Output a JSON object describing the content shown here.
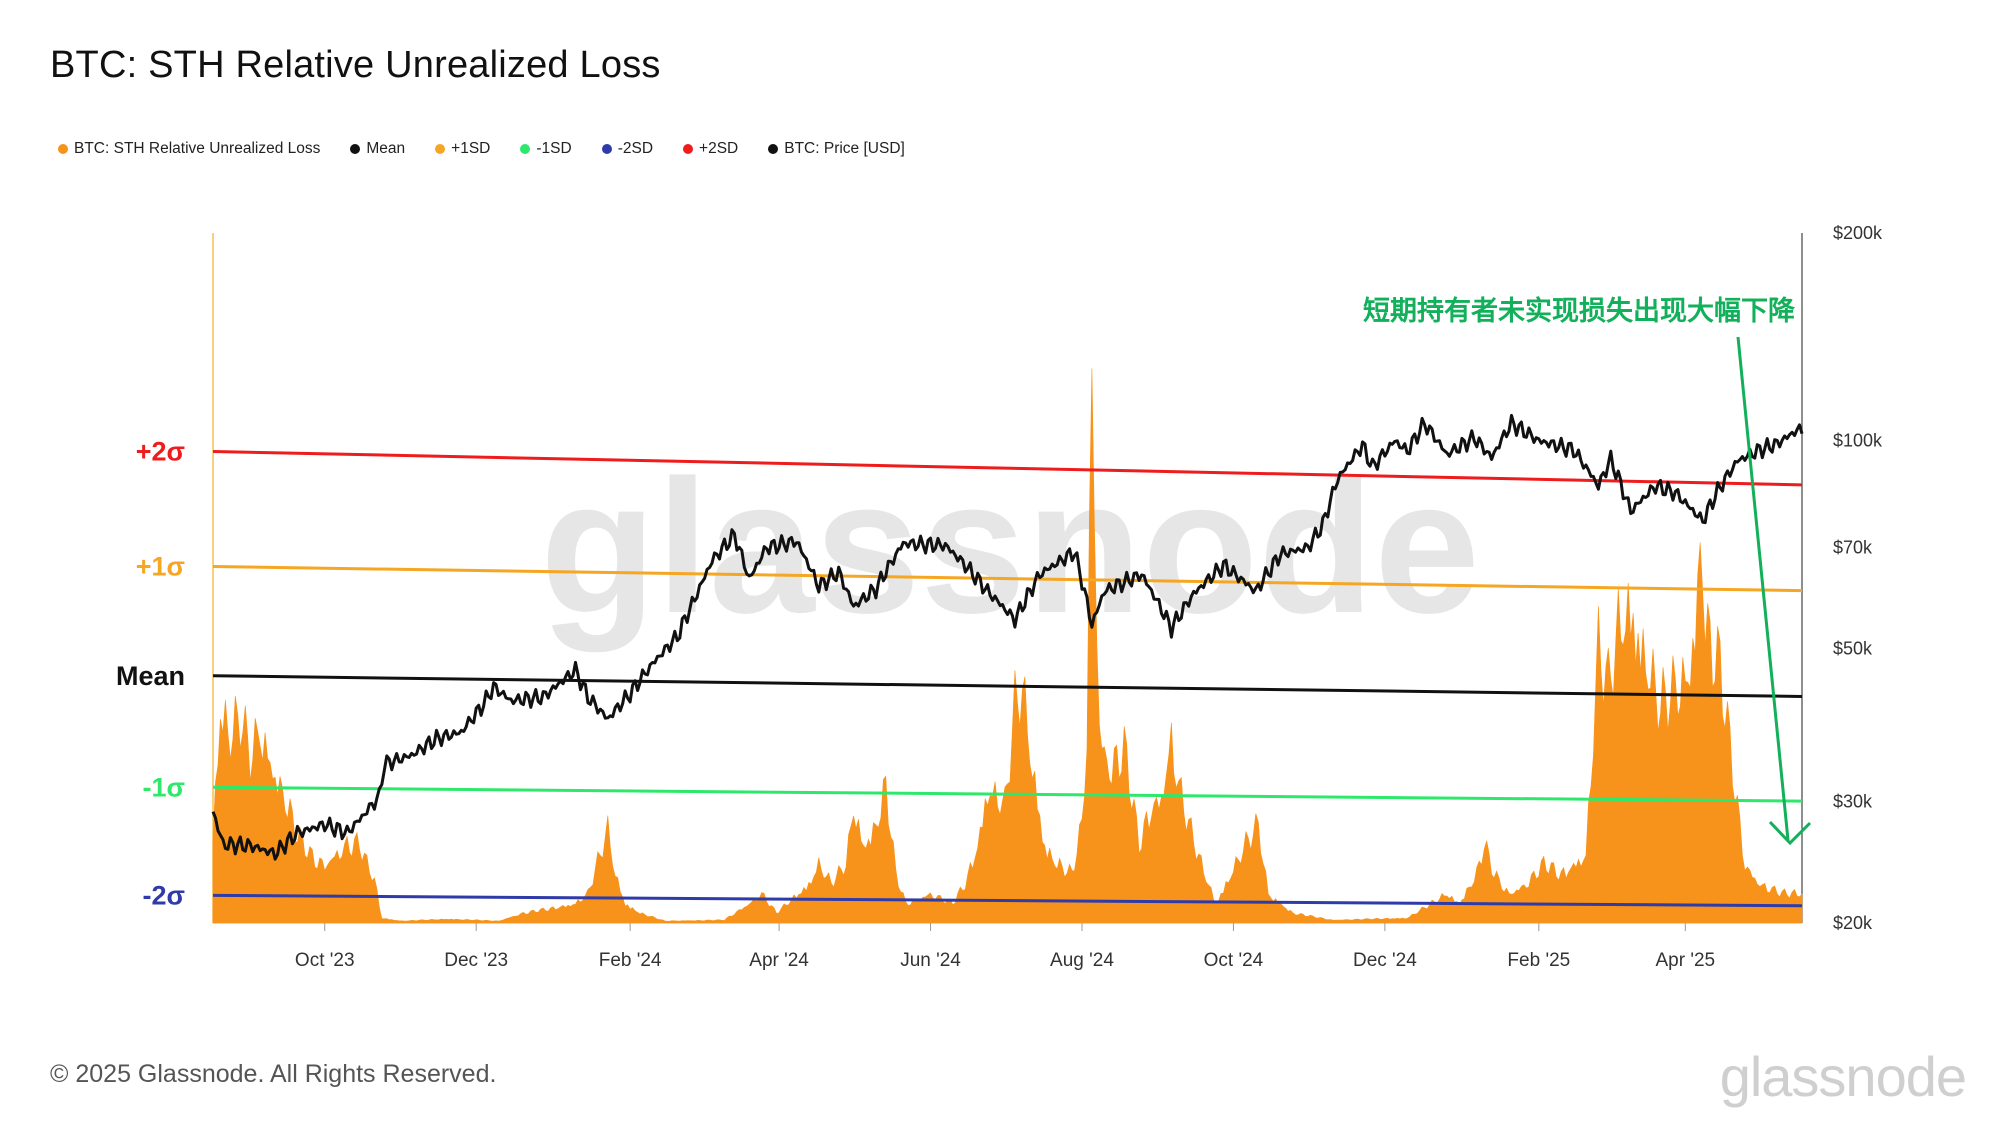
{
  "title": "BTC: STH Relative Unrealized Loss",
  "legend": [
    {
      "label": "BTC: STH Relative Unrealized Loss",
      "color": "#f7931a"
    },
    {
      "label": "Mean",
      "color": "#111111"
    },
    {
      "label": "+1SD",
      "color": "#f5a623"
    },
    {
      "label": "-1SD",
      "color": "#2ee86b"
    },
    {
      "label": "-2SD",
      "color": "#2f3ba8"
    },
    {
      "label": "+2SD",
      "color": "#ee1c1c"
    },
    {
      "label": "BTC: Price [USD]",
      "color": "#111111"
    }
  ],
  "band_labels": [
    {
      "text": "+2σ",
      "color": "#ee1c1c"
    },
    {
      "text": "+1σ",
      "color": "#f5a623"
    },
    {
      "text": "Mean",
      "color": "#111111"
    },
    {
      "text": "-1σ",
      "color": "#2ee86b"
    },
    {
      "text": "-2σ",
      "color": "#2f3ba8"
    }
  ],
  "annotation": {
    "text": "短期持有者未实现损失出现大幅下降",
    "color": "#12b05a"
  },
  "watermark": "glassnode",
  "footer": "© 2025 Glassnode. All Rights Reserved.",
  "logo": "glassnode",
  "chart_data": {
    "type": "area",
    "x_start": "2023-08-17",
    "x_end": "2025-05-18",
    "xticks": [
      "Oct '23",
      "Dec '23",
      "Feb '24",
      "Apr '24",
      "Jun '24",
      "Aug '24",
      "Oct '24",
      "Dec '24",
      "Feb '25",
      "Apr '25"
    ],
    "xtick_dates": [
      "2023-10-01",
      "2023-12-01",
      "2024-02-01",
      "2024-04-01",
      "2024-06-01",
      "2024-08-01",
      "2024-10-01",
      "2024-12-01",
      "2025-02-01",
      "2025-04-01"
    ],
    "y_right": {
      "scale": "log",
      "min": 20000,
      "max": 200000,
      "ticks": [
        20000,
        30000,
        50000,
        70000,
        100000,
        200000
      ],
      "tick_labels": [
        "$20k",
        "$30k",
        "$50k",
        "$70k",
        "$100k",
        "$200k"
      ]
    },
    "y_left": {
      "scale": "linear",
      "min": 0,
      "max": 0.6,
      "tick_labels": []
    },
    "series": [
      {
        "name": "BTC: STH Relative Unrealized Loss",
        "axis": "left",
        "color": "#f7931a",
        "points": [
          [
            "2023-08-17",
            0.1
          ],
          [
            "2023-08-20",
            0.22
          ],
          [
            "2023-08-24",
            0.19
          ],
          [
            "2023-08-28",
            0.21
          ],
          [
            "2023-09-01",
            0.17
          ],
          [
            "2023-09-05",
            0.2
          ],
          [
            "2023-09-10",
            0.16
          ],
          [
            "2023-09-15",
            0.13
          ],
          [
            "2023-09-20",
            0.09
          ],
          [
            "2023-09-25",
            0.07
          ],
          [
            "2023-10-01",
            0.06
          ],
          [
            "2023-10-05",
            0.07
          ],
          [
            "2023-10-10",
            0.08
          ],
          [
            "2023-10-15",
            0.08
          ],
          [
            "2023-10-18",
            0.06
          ],
          [
            "2023-10-21",
            0.045
          ],
          [
            "2023-10-24",
            0.005
          ],
          [
            "2023-11-01",
            0.002
          ],
          [
            "2023-11-20",
            0.004
          ],
          [
            "2023-12-10",
            0.002
          ],
          [
            "2023-12-20",
            0.01
          ],
          [
            "2024-01-01",
            0.015
          ],
          [
            "2024-01-10",
            0.02
          ],
          [
            "2024-01-15",
            0.03
          ],
          [
            "2024-01-20",
            0.07
          ],
          [
            "2024-01-23",
            0.095
          ],
          [
            "2024-01-26",
            0.05
          ],
          [
            "2024-01-30",
            0.02
          ],
          [
            "2024-02-05",
            0.01
          ],
          [
            "2024-02-15",
            0.002
          ],
          [
            "2024-03-10",
            0.003
          ],
          [
            "2024-03-20",
            0.02
          ],
          [
            "2024-03-25",
            0.03
          ],
          [
            "2024-03-31",
            0.01
          ],
          [
            "2024-04-13",
            0.04
          ],
          [
            "2024-04-17",
            0.06
          ],
          [
            "2024-04-22",
            0.04
          ],
          [
            "2024-04-28",
            0.06
          ],
          [
            "2024-05-01",
            0.12
          ],
          [
            "2024-05-05",
            0.08
          ],
          [
            "2024-05-10",
            0.1
          ],
          [
            "2024-05-14",
            0.14
          ],
          [
            "2024-05-18",
            0.05
          ],
          [
            "2024-05-22",
            0.02
          ],
          [
            "2024-06-01",
            0.03
          ],
          [
            "2024-06-10",
            0.02
          ],
          [
            "2024-06-15",
            0.04
          ],
          [
            "2024-06-20",
            0.08
          ],
          [
            "2024-06-24",
            0.14
          ],
          [
            "2024-07-01",
            0.12
          ],
          [
            "2024-07-05",
            0.22
          ],
          [
            "2024-07-08",
            0.24
          ],
          [
            "2024-07-12",
            0.16
          ],
          [
            "2024-07-17",
            0.08
          ],
          [
            "2024-07-22",
            0.06
          ],
          [
            "2024-07-28",
            0.05
          ],
          [
            "2024-08-01",
            0.1
          ],
          [
            "2024-08-03",
            0.2
          ],
          [
            "2024-08-05",
            0.56
          ],
          [
            "2024-08-08",
            0.2
          ],
          [
            "2024-08-12",
            0.16
          ],
          [
            "2024-08-18",
            0.18
          ],
          [
            "2024-08-24",
            0.08
          ],
          [
            "2024-08-29",
            0.12
          ],
          [
            "2024-09-02",
            0.13
          ],
          [
            "2024-09-06",
            0.19
          ],
          [
            "2024-09-09",
            0.14
          ],
          [
            "2024-09-13",
            0.1
          ],
          [
            "2024-09-18",
            0.06
          ],
          [
            "2024-09-24",
            0.02
          ],
          [
            "2024-10-02",
            0.06
          ],
          [
            "2024-10-06",
            0.08
          ],
          [
            "2024-10-11",
            0.1
          ],
          [
            "2024-10-15",
            0.03
          ],
          [
            "2024-10-25",
            0.01
          ],
          [
            "2024-11-10",
            0.003
          ],
          [
            "2024-12-10",
            0.005
          ],
          [
            "2024-12-20",
            0.02
          ],
          [
            "2024-12-26",
            0.03
          ],
          [
            "2024-12-31",
            0.02
          ],
          [
            "2025-01-07",
            0.05
          ],
          [
            "2025-01-10",
            0.08
          ],
          [
            "2025-01-14",
            0.05
          ],
          [
            "2025-01-20",
            0.03
          ],
          [
            "2025-01-27",
            0.04
          ],
          [
            "2025-02-03",
            0.06
          ],
          [
            "2025-02-10",
            0.05
          ],
          [
            "2025-02-20",
            0.07
          ],
          [
            "2025-02-25",
            0.28
          ],
          [
            "2025-03-01",
            0.24
          ],
          [
            "2025-03-05",
            0.3
          ],
          [
            "2025-03-10",
            0.33
          ],
          [
            "2025-03-15",
            0.28
          ],
          [
            "2025-03-22",
            0.22
          ],
          [
            "2025-03-28",
            0.24
          ],
          [
            "2025-04-01",
            0.25
          ],
          [
            "2025-04-05",
            0.3
          ],
          [
            "2025-04-07",
            0.4
          ],
          [
            "2025-04-10",
            0.3
          ],
          [
            "2025-04-15",
            0.26
          ],
          [
            "2025-04-20",
            0.16
          ],
          [
            "2025-04-25",
            0.06
          ],
          [
            "2025-05-01",
            0.04
          ],
          [
            "2025-05-10",
            0.03
          ],
          [
            "2025-05-18",
            0.03
          ]
        ]
      },
      {
        "name": "Mean",
        "axis": "left",
        "color": "#111111",
        "points": [
          [
            "2023-08-17",
            0.215
          ],
          [
            "2025-05-18",
            0.197
          ]
        ]
      },
      {
        "name": "+1SD",
        "axis": "left",
        "color": "#f5a623",
        "points": [
          [
            "2023-08-17",
            0.31
          ],
          [
            "2025-05-18",
            0.289
          ]
        ]
      },
      {
        "name": "+2SD",
        "axis": "left",
        "color": "#ee1c1c",
        "points": [
          [
            "2023-08-17",
            0.41
          ],
          [
            "2025-05-18",
            0.381
          ]
        ]
      },
      {
        "name": "-1SD",
        "axis": "left",
        "color": "#2ee86b",
        "points": [
          [
            "2023-08-17",
            0.118
          ],
          [
            "2025-05-18",
            0.106
          ]
        ]
      },
      {
        "name": "-2SD",
        "axis": "left",
        "color": "#2f3ba8",
        "points": [
          [
            "2023-08-17",
            0.024
          ],
          [
            "2025-05-18",
            0.015
          ]
        ]
      },
      {
        "name": "BTC: Price [USD]",
        "axis": "right",
        "color": "#111111",
        "points": [
          [
            "2023-08-17",
            29000
          ],
          [
            "2023-08-21",
            26000
          ],
          [
            "2023-09-01",
            25900
          ],
          [
            "2023-09-11",
            25200
          ],
          [
            "2023-09-20",
            27000
          ],
          [
            "2023-10-01",
            27800
          ],
          [
            "2023-10-10",
            27000
          ],
          [
            "2023-10-16",
            28500
          ],
          [
            "2023-10-23",
            30500
          ],
          [
            "2023-10-25",
            34000
          ],
          [
            "2023-11-05",
            35000
          ],
          [
            "2023-11-15",
            37000
          ],
          [
            "2023-11-25",
            37800
          ],
          [
            "2023-12-04",
            41500
          ],
          [
            "2023-12-08",
            44000
          ],
          [
            "2023-12-15",
            42000
          ],
          [
            "2023-12-28",
            42500
          ],
          [
            "2024-01-10",
            46500
          ],
          [
            "2024-01-15",
            42500
          ],
          [
            "2024-01-23",
            39500
          ],
          [
            "2024-02-01",
            43000
          ],
          [
            "2024-02-10",
            47500
          ],
          [
            "2024-02-20",
            52000
          ],
          [
            "2024-02-28",
            60000
          ],
          [
            "2024-03-05",
            67000
          ],
          [
            "2024-03-14",
            73000
          ],
          [
            "2024-03-20",
            63000
          ],
          [
            "2024-03-27",
            70000
          ],
          [
            "2024-04-08",
            71500
          ],
          [
            "2024-04-17",
            61500
          ],
          [
            "2024-04-25",
            64500
          ],
          [
            "2024-05-01",
            57500
          ],
          [
            "2024-05-10",
            61000
          ],
          [
            "2024-05-21",
            71000
          ],
          [
            "2024-06-07",
            70500
          ],
          [
            "2024-06-15",
            66000
          ],
          [
            "2024-06-24",
            60500
          ],
          [
            "2024-07-05",
            55000
          ],
          [
            "2024-07-15",
            64000
          ],
          [
            "2024-07-29",
            69000
          ],
          [
            "2024-08-05",
            54000
          ],
          [
            "2024-08-10",
            60500
          ],
          [
            "2024-08-25",
            64000
          ],
          [
            "2024-09-06",
            53500
          ],
          [
            "2024-09-15",
            60000
          ],
          [
            "2024-09-27",
            66000
          ],
          [
            "2024-10-10",
            60500
          ],
          [
            "2024-10-20",
            68500
          ],
          [
            "2024-10-31",
            70000
          ],
          [
            "2024-11-06",
            75500
          ],
          [
            "2024-11-12",
            88000
          ],
          [
            "2024-11-22",
            98500
          ],
          [
            "2024-11-26",
            91500
          ],
          [
            "2024-12-05",
            100000
          ],
          [
            "2024-12-10",
            96500
          ],
          [
            "2024-12-17",
            106000
          ],
          [
            "2024-12-26",
            95500
          ],
          [
            "2025-01-06",
            101000
          ],
          [
            "2025-01-13",
            94500
          ],
          [
            "2025-01-21",
            106000
          ],
          [
            "2025-02-01",
            100000
          ],
          [
            "2025-02-15",
            97000
          ],
          [
            "2025-02-25",
            86000
          ],
          [
            "2025-03-02",
            94000
          ],
          [
            "2025-03-10",
            79000
          ],
          [
            "2025-03-20",
            86000
          ],
          [
            "2025-03-28",
            84000
          ],
          [
            "2025-04-08",
            76500
          ],
          [
            "2025-04-14",
            84500
          ],
          [
            "2025-04-22",
            93500
          ],
          [
            "2025-05-01",
            97000
          ],
          [
            "2025-05-08",
            99000
          ],
          [
            "2025-05-15",
            103000
          ],
          [
            "2025-05-18",
            104000
          ]
        ]
      }
    ]
  }
}
